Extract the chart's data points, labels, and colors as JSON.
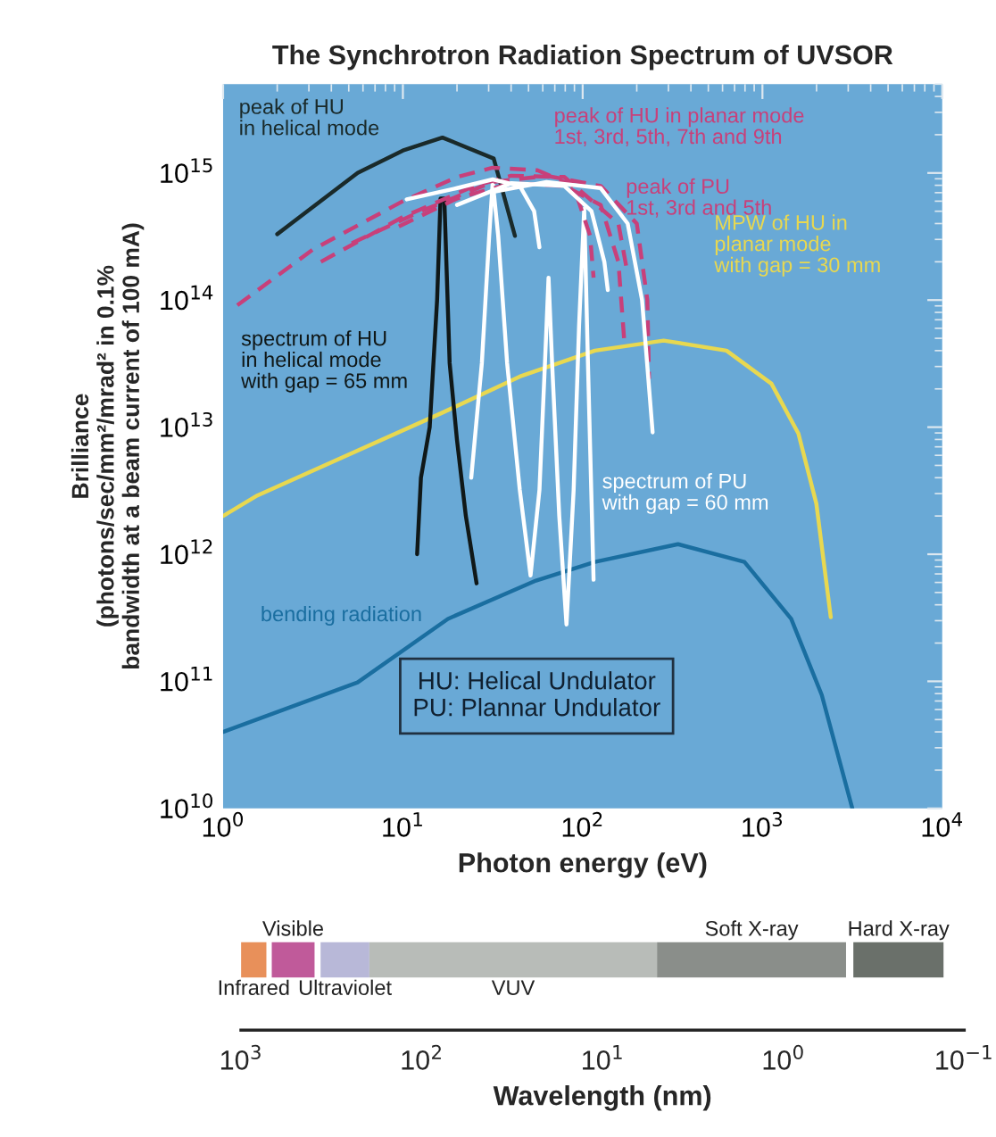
{
  "chart_data": [
    {
      "type": "line",
      "title": "The Synchrotron Radiation Spectrum of UVSOR",
      "xlabel": "Photon energy (eV)",
      "ylabel": "Brilliance\n(photons/sec/mm²/mrad² in 0.1%\nbandwidth at a beam current of 100 mA)",
      "log": "xy",
      "grid": false,
      "legend": false,
      "marker": "none",
      "xlim": [
        1,
        10000
      ],
      "ylim": [
        10000000000.0,
        5000000000000000.0
      ],
      "xticks": [
        {
          "value": 1,
          "label": "10$^{0}$"
        },
        {
          "value": 10,
          "label": "10$^{1}$"
        },
        {
          "value": 100,
          "label": "10$^{2}$"
        },
        {
          "value": 1000,
          "label": "10$^{3}$"
        },
        {
          "value": 10000,
          "label": "10$^{4}$"
        }
      ],
      "yticks": [
        {
          "value": 10000000000.0,
          "label": "10$^{10}$"
        },
        {
          "value": 100000000000.0,
          "label": "10$^{11}$"
        },
        {
          "value": 1000000000000.0,
          "label": "10$^{12}$"
        },
        {
          "value": 10000000000000.0,
          "label": "10$^{13}$"
        },
        {
          "value": 100000000000000.0,
          "label": "10$^{14}$"
        },
        {
          "value": 1000000000000000.0,
          "label": "10$^{15}$"
        }
      ],
      "annotations": [
        "HU: Helical Undulator\nPU: Plannar Undulator"
      ],
      "series": [
        {
          "name": "bending radiation",
          "color": "#1a6ea0",
          "line_style": "solid",
          "x": [
            1,
            5.6,
            17.8,
            55,
            117,
            339,
            794,
            1445,
            2138,
            3162
          ],
          "values": [
            40000000000.0,
            98000000000.0,
            310000000000.0,
            620000000000.0,
            870000000000.0,
            1200000000000.0,
            870000000000.0,
            310000000000.0,
            78000000000.0,
            10000000000.0
          ]
        },
        {
          "name": "MPW of HU in\nplanar mode\nwith gap = 30 mm",
          "color": "#e8d850",
          "line_style": "solid",
          "x": [
            1,
            1.55,
            16.6,
            44.7,
            117,
            282,
            631,
            1122,
            1585,
            1995,
            2399
          ],
          "values": [
            2000000000000.0,
            2900000000000.0,
            13000000000000.0,
            25000000000000.0,
            40000000000000.0,
            48000000000000.0,
            40000000000000.0,
            22000000000000.0,
            8900000000000.0,
            2500000000000.0,
            320000000000.0
          ]
        },
        {
          "name": "peak of HU\nin helical mode",
          "color": "#1a2a2a",
          "line_style": "solid",
          "x": [
            2.0,
            5.6,
            10,
            16.6,
            32,
            42
          ],
          "values": [
            330000000000000.0,
            1000000000000000.0,
            1500000000000000.0,
            1900000000000000.0,
            1300000000000000.0,
            320000000000000.0
          ]
        },
        {
          "name": "spectrum of HU\nin helical mode\nwith gap = 65 mm",
          "color": "#101818",
          "line_style": "solid",
          "x": [
            12.0,
            12.6,
            14.1,
            15.5,
            16.2,
            17.0,
            18.2,
            20.0,
            22.4,
            25.7
          ],
          "values": [
            1000000000000.0,
            4000000000000.0,
            10000000000000.0,
            100000000000000.0,
            630000000000000.0,
            630000000000000.0,
            32000000000000.0,
            7900000000000.0,
            2000000000000.0,
            590000000000.0
          ]
        },
        {
          "name": "spectrum of PU\nwith gap = 60 mm",
          "color": "#ffffff",
          "line_style": "solid",
          "x": [
            24.0,
            27.5,
            30.2,
            31.6,
            33.9,
            38.0,
            44.7,
            51.3,
            57.5,
            61.7,
            64.6,
            67.6,
            74.1,
            81.3,
            89.1,
            95.5,
            102,
            107,
            115
          ],
          "values": [
            4000000000000.0,
            32000000000000.0,
            320000000000000.0,
            850000000000000.0,
            320000000000000.0,
            32000000000000.0,
            3200000000000.0,
            680000000000.0,
            3200000000000.0,
            32000000000000.0,
            150000000000000.0,
            32000000000000.0,
            2000000000000.0,
            280000000000.0,
            3200000000000.0,
            63000000000000.0,
            520000000000000.0,
            32000000000000.0,
            630000000000.0
          ]
        },
        {
          "name": "peak of HU in planar mode\n1st, 3rd, 5th, 7th and 9th",
          "color": "#c8407a",
          "line_style": "dashed",
          "x": [
            1.2,
            3.16,
            10,
            20,
            31.6,
            56,
            89,
            110,
            115
          ],
          "values": [
            91000000000000.0,
            250000000000000.0,
            600000000000000.0,
            930000000000000.0,
            1100000000000000.0,
            1050000000000000.0,
            790000000000000.0,
            320000000000000.0,
            150000000000000.0
          ]
        },
        {
          "color": "#c8407a",
          "line_style": "dashed",
          "x": [
            3.5,
            10,
            25,
            40,
            79,
            158,
            178
          ],
          "values": [
            200000000000000.0,
            450000000000000.0,
            790000000000000.0,
            950000000000000.0,
            930000000000000.0,
            400000000000000.0,
            160000000000000.0
          ]
        },
        {
          "color": "#c8407a",
          "line_style": "dashed",
          "x": [
            5.2,
            12.6,
            31.6,
            63,
            126,
            200,
            229,
            234
          ],
          "values": [
            280000000000000.0,
            500000000000000.0,
            850000000000000.0,
            950000000000000.0,
            790000000000000.0,
            400000000000000.0,
            100000000000000.0,
            24000000000000.0
          ]
        },
        {
          "name": "peak of PU\n1st, 3rd and 5th",
          "color": "#c8407a",
          "line_style": "dashed",
          "x": [
            9.5,
            20,
            40,
            79,
            126,
            158,
            170
          ],
          "values": [
            380000000000000.0,
            630000000000000.0,
            830000000000000.0,
            790000000000000.0,
            560000000000000.0,
            200000000000000.0,
            50000000000000.0
          ]
        },
        {
          "color": "#ffffff",
          "line_style": "solid",
          "x": [
            10.5,
            20,
            31.6,
            44.7,
            53.7,
            57.5
          ],
          "values": [
            620000000000000.0,
            760000000000000.0,
            890000000000000.0,
            790000000000000.0,
            500000000000000.0,
            260000000000000.0
          ]
        },
        {
          "color": "#ffffff",
          "line_style": "solid",
          "x": [
            20,
            40,
            79,
            112,
            132,
            138
          ],
          "values": [
            560000000000000.0,
            830000000000000.0,
            790000000000000.0,
            500000000000000.0,
            200000000000000.0,
            120000000000000.0
          ]
        },
        {
          "color": "#ffffff",
          "line_style": "solid",
          "x": [
            31.6,
            63,
            126,
            178,
            214,
            245
          ],
          "values": [
            710000000000000.0,
            850000000000000.0,
            760000000000000.0,
            400000000000000.0,
            100000000000000.0,
            9100000000000.0
          ]
        }
      ]
    },
    {
      "type": "bar",
      "orientation": "horizontal",
      "categories": [
        null
      ],
      "xlabel": "Wavelength (nm)",
      "log": "x",
      "xlim": [
        1000,
        0.1
      ],
      "tick_labels": "x",
      "xticks": [
        {
          "value": 1000,
          "label": "10$^{3}$"
        },
        {
          "value": 100,
          "label": "10$^{2}$"
        },
        {
          "value": 10,
          "label": "10$^{1}$"
        },
        {
          "value": 1,
          "label": "10$^{0}$"
        },
        {
          "value": 0.1,
          "label": "10$^{−1}$"
        }
      ],
      "series": [
        {
          "name": "Infrared",
          "color": "#e8905a",
          "base": [
            724
          ],
          "values": [
            276
          ]
        },
        {
          "name": "Visible",
          "color": "#c05a9a",
          "base": [
            392
          ],
          "values": [
            284
          ]
        },
        {
          "name": "Ultraviolet",
          "color": "#b8b8d8",
          "base": [
            195
          ],
          "values": [
            168
          ]
        },
        {
          "name": "VUV",
          "color": "#b8bcb8",
          "base": [
            5
          ],
          "values": [
            190
          ]
        },
        {
          "name": "Soft X-ray",
          "color": "#8a8e8a",
          "base": [
            0.45
          ],
          "values": [
            4.55
          ]
        },
        {
          "name": "Hard X-ray",
          "color": "#6a706a",
          "base": [
            0.13
          ],
          "values": [
            0.28
          ]
        }
      ]
    }
  ]
}
